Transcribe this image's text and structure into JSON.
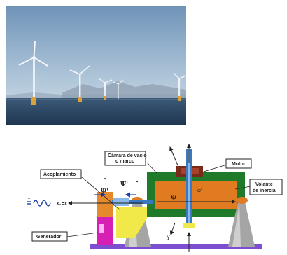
{
  "photo": {
    "subject": "offshore-wind-turbines",
    "colors": {
      "sky_top": "#7fa0c0",
      "sky_horizon": "#c8d8e6",
      "sea": "#27425e",
      "tower_base": "#d9a23a"
    }
  },
  "diagram": {
    "labels": {
      "chamber": "Cámara de vacío\no marco",
      "motor": "Motor",
      "coupling": "Acoplamiento",
      "flywheel": "Volante\nde inercia",
      "generator": "Generador"
    },
    "symbols": {
      "xeq": "X₁=X",
      "psi_left": "Ψ'",
      "psi_mid": "Ψ'",
      "psi_r": "ψ",
      "y_axis": "Y",
      "dot_mark": "•",
      "phi": "φ'"
    },
    "colors": {
      "frame_green": "#1f7a2a",
      "rotor_orange": "#e07b22",
      "generator_magenta": "#d61fb5",
      "generator_orange": "#e58a2c",
      "coupling_yellow": "#f1e84a",
      "base_purple": "#7c4fd0",
      "support_grey": "#9a9a9a",
      "shaft_blue": "#3a78c2",
      "motor_brown": "#7a2a18"
    }
  }
}
